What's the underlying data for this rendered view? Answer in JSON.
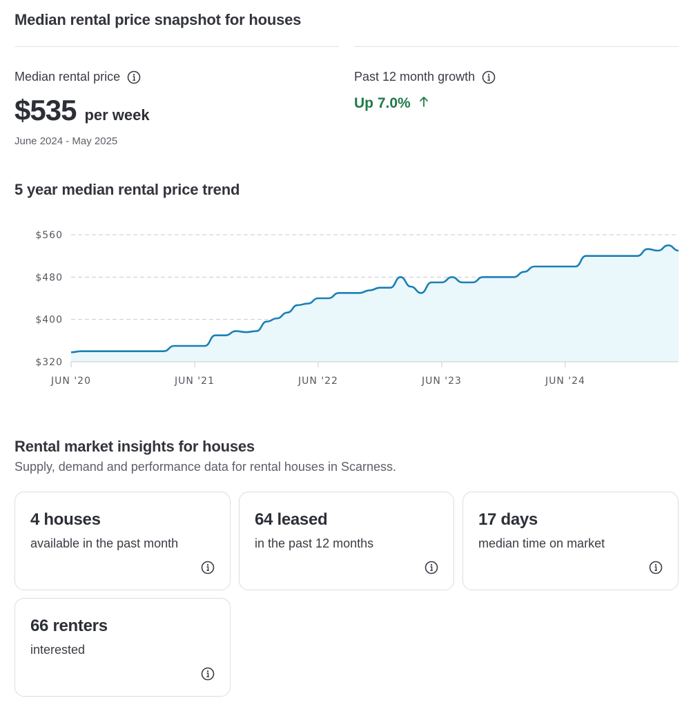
{
  "snapshot": {
    "title": "Median rental price snapshot for houses",
    "median_label": "Median rental price",
    "median_value": "$535",
    "median_unit": "per week",
    "median_period": "June 2024 - May 2025",
    "growth_label": "Past 12 month growth",
    "growth_value": "Up 7.0%",
    "growth_icon": "arrow-up-icon",
    "growth_color": "#1f7a4a",
    "info_icon": "info-icon"
  },
  "trend": {
    "title": "5 year median rental price trend"
  },
  "chart_data": {
    "type": "area",
    "title": "5 year median rental price trend",
    "xlabel": "",
    "ylabel": "",
    "x_tick_labels": [
      "JUN '20",
      "JUN '21",
      "JUN '22",
      "JUN '23",
      "JUN '24"
    ],
    "y_tick_labels": [
      "$560",
      "$480",
      "$400",
      "$320"
    ],
    "y_ticks": [
      560,
      480,
      400,
      320
    ],
    "ylim": [
      320,
      560
    ],
    "xlim": [
      "2020-06",
      "2025-05"
    ],
    "grid": true,
    "line_color": "#1a7fb5",
    "fill_color": "#eaf7fb",
    "series": [
      {
        "x": [
          "2020-06",
          "2020-07",
          "2020-09",
          "2020-11",
          "2021-01",
          "2021-03",
          "2021-04",
          "2021-06",
          "2021-07",
          "2021-08",
          "2021-09",
          "2021-10",
          "2021-11",
          "2021-12",
          "2022-01",
          "2022-02",
          "2022-03",
          "2022-04",
          "2022-05",
          "2022-06",
          "2022-07",
          "2022-08",
          "2022-09",
          "2022-10",
          "2022-11",
          "2022-12",
          "2023-01",
          "2023-02",
          "2023-03",
          "2023-04",
          "2023-05",
          "2023-06",
          "2023-07",
          "2023-08",
          "2023-09",
          "2023-10",
          "2023-11",
          "2023-12",
          "2024-01",
          "2024-02",
          "2024-03",
          "2024-04",
          "2024-05",
          "2024-06",
          "2024-07",
          "2024-08",
          "2024-09",
          "2024-10",
          "2024-11",
          "2024-12",
          "2025-01",
          "2025-02",
          "2025-03",
          "2025-04",
          "2025-05"
        ],
        "values": [
          338,
          340,
          340,
          340,
          340,
          340,
          350,
          350,
          350,
          370,
          370,
          378,
          376,
          378,
          396,
          402,
          413,
          427,
          430,
          440,
          440,
          450,
          450,
          450,
          455,
          460,
          460,
          480,
          462,
          450,
          470,
          470,
          480,
          470,
          470,
          480,
          480,
          480,
          480,
          490,
          500,
          500,
          500,
          500,
          500,
          520,
          520,
          520,
          520,
          520,
          520,
          533,
          530,
          540,
          530
        ]
      }
    ]
  },
  "insights": {
    "title": "Rental market insights for houses",
    "subtitle": "Supply, demand and performance data for rental houses in Scarness.",
    "cards": [
      {
        "value": "4 houses",
        "desc": "available in the past month"
      },
      {
        "value": "64 leased",
        "desc": "in the past 12 months"
      },
      {
        "value": "17 days",
        "desc": "median time on market"
      },
      {
        "value": "66 renters",
        "desc": "interested"
      }
    ]
  }
}
